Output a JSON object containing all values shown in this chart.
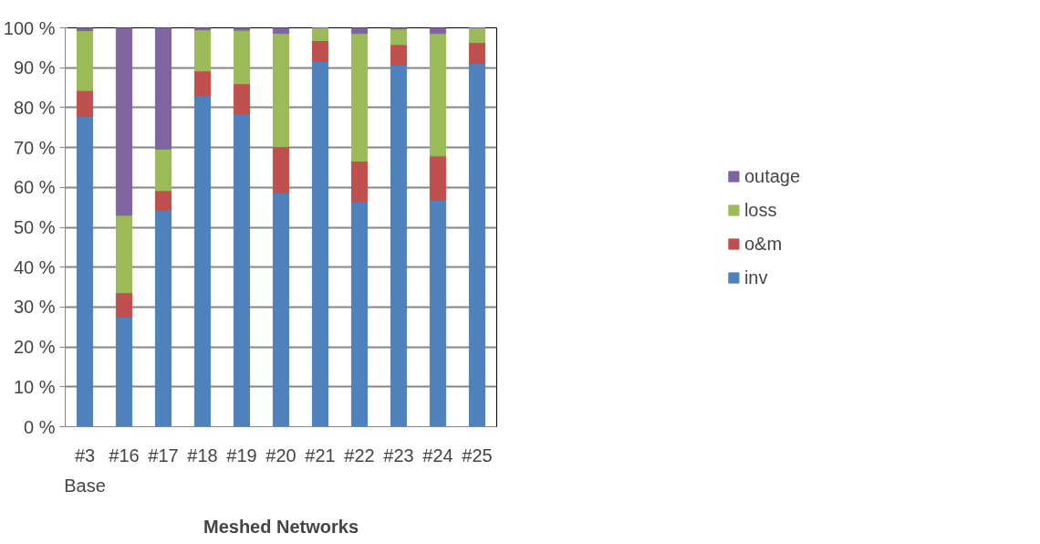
{
  "chart_data": {
    "type": "bar",
    "stacked": true,
    "xlabel": "Meshed Networks",
    "categories": [
      "#3\nBase",
      "#16",
      "#17",
      "#18",
      "#19",
      "#20",
      "#21",
      "#22",
      "#23",
      "#24",
      "#25"
    ],
    "series": [
      {
        "name": "inv",
        "color": "#4f81bd",
        "values": [
          77.8,
          27.5,
          54.3,
          83,
          78.4,
          58.7,
          91.6,
          56.4,
          90.7,
          56.8,
          91.1
        ]
      },
      {
        "name": "o&m",
        "color": "#c0504d",
        "values": [
          6.5,
          6.1,
          4.9,
          6.2,
          7.6,
          11.5,
          5.2,
          10.2,
          5.1,
          11.1,
          5.2
        ]
      },
      {
        "name": "loss",
        "color": "#9bbb59",
        "values": [
          15,
          19.4,
          10.4,
          10.3,
          13.4,
          28.4,
          3.2,
          32,
          3.9,
          30.7,
          3.7
        ]
      },
      {
        "name": "outage",
        "color": "#8064a2",
        "values": [
          0.7,
          47,
          30.4,
          0.5,
          0.6,
          1.4,
          0,
          1.4,
          0.3,
          1.4,
          0
        ]
      }
    ],
    "ylim": [
      0,
      100
    ],
    "yticks": [
      {
        "value": 0,
        "label": "0 %"
      },
      {
        "value": 10,
        "label": "10 %"
      },
      {
        "value": 20,
        "label": "20 %"
      },
      {
        "value": 30,
        "label": "30 %"
      },
      {
        "value": 40,
        "label": "40 %"
      },
      {
        "value": 50,
        "label": "50 %"
      },
      {
        "value": 60,
        "label": "60 %"
      },
      {
        "value": 70,
        "label": "70 %"
      },
      {
        "value": 80,
        "label": "80 %"
      },
      {
        "value": 90,
        "label": "90 %"
      },
      {
        "value": 100,
        "label": "100 %"
      }
    ],
    "grid": "y",
    "legend": "right"
  }
}
